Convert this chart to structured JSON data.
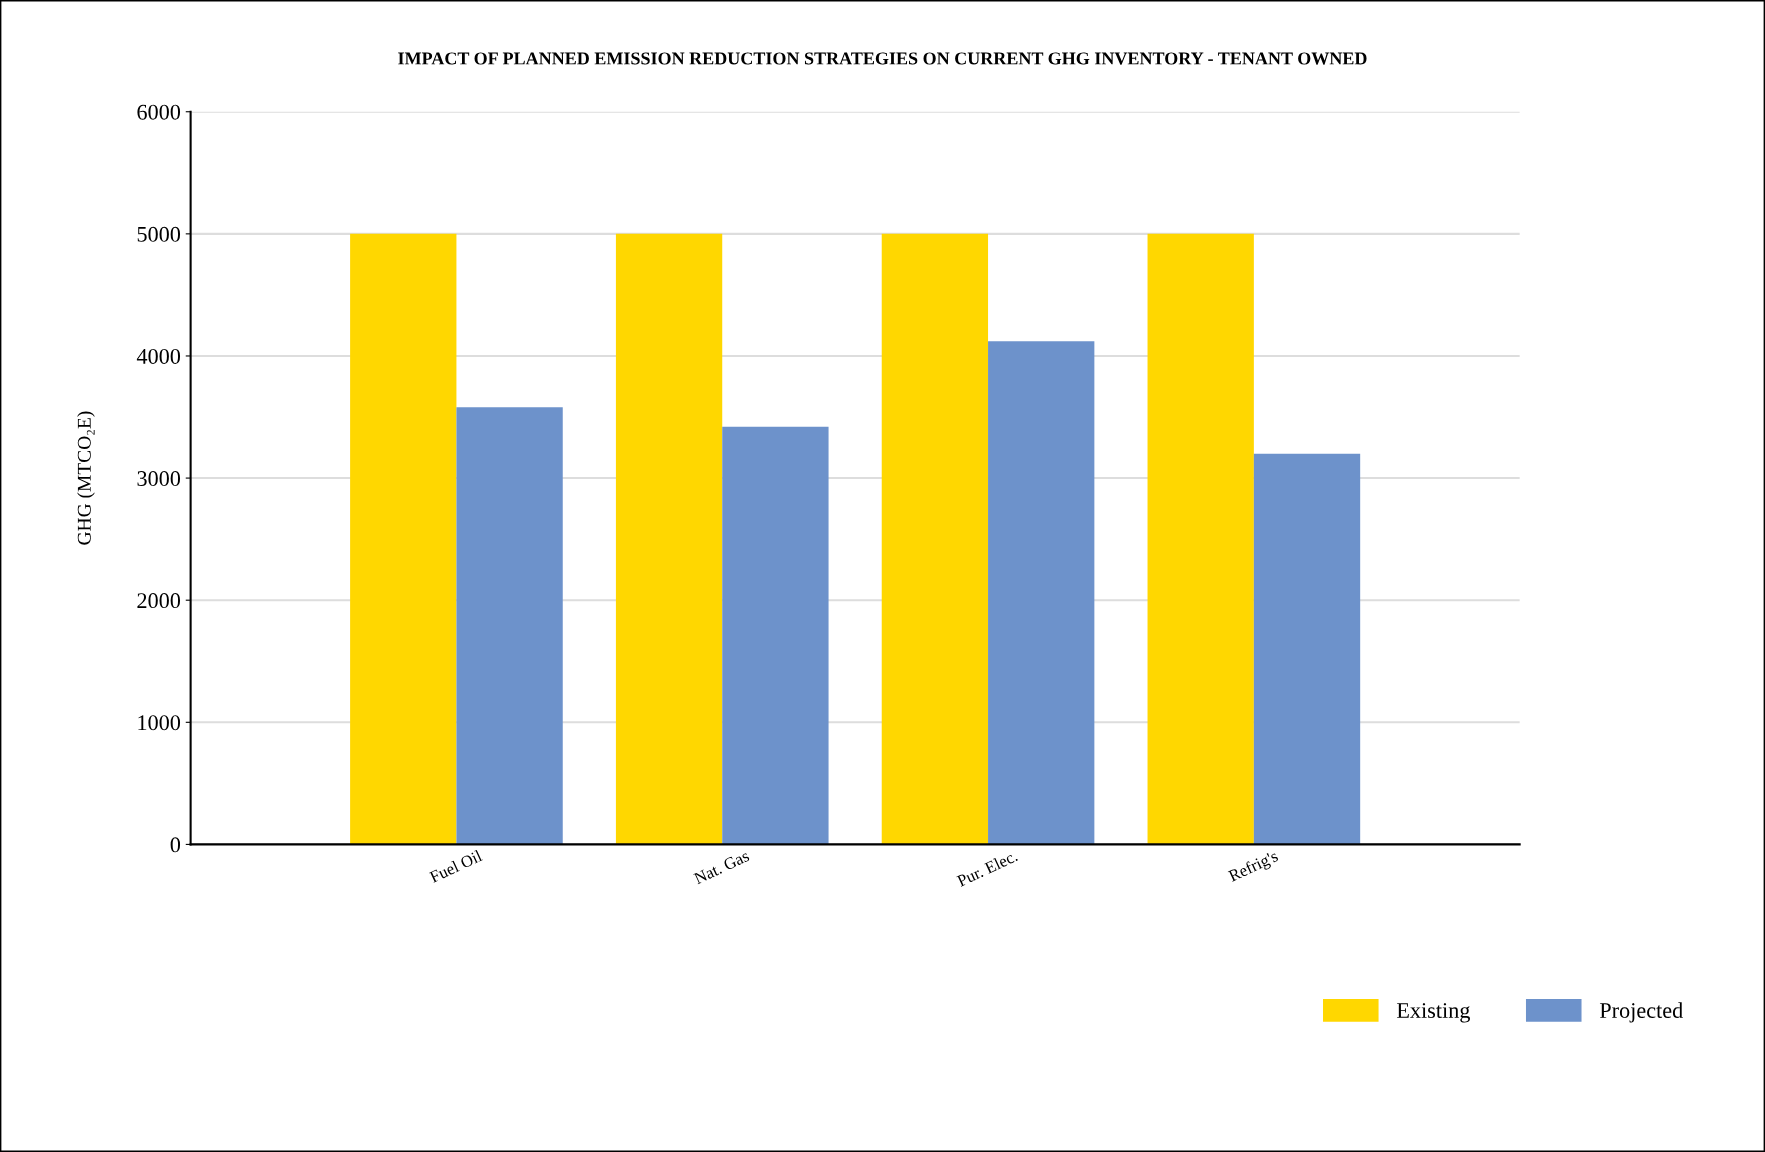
{
  "chart_data": {
    "type": "bar",
    "title": "IMPACT OF PLANNED EMISSION REDUCTION STRATEGIES ON CURRENT GHG INVENTORY - TENANT OWNED",
    "ylabel": "GHG (MTCO₂E)",
    "categories": [
      "Fuel Oil",
      "Nat. Gas",
      "Pur. Elec.",
      "Refrig's"
    ],
    "series": [
      {
        "name": "Existing",
        "color": "#ffd700",
        "values": [
          5000,
          5000,
          5000,
          5000
        ]
      },
      {
        "name": "Projected",
        "color": "#6d92cb",
        "values": [
          3580,
          3420,
          4120,
          3200
        ]
      }
    ],
    "ylim": [
      0,
      6000
    ],
    "yticks": [
      0,
      1000,
      2000,
      3000,
      4000,
      5000,
      6000
    ],
    "grid": "y",
    "legend": "bottom right"
  }
}
